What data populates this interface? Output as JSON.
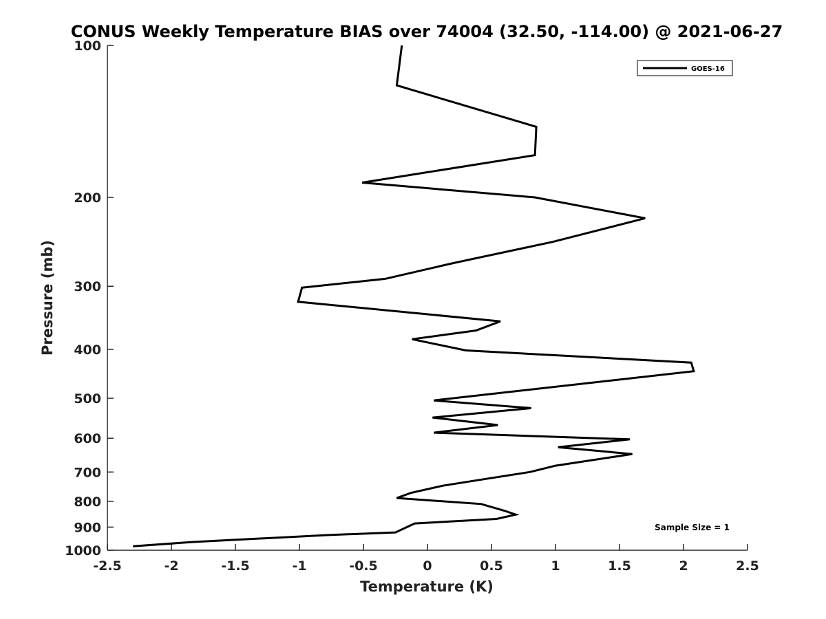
{
  "chart_data": {
    "type": "line",
    "title": "CONUS Weekly Temperature BIAS over 74004 (32.50, -114.00) @ 2021-06-27",
    "xlabel": "Temperature (K)",
    "ylabel": "Pressure (mb)",
    "xlim": [
      -2.5,
      2.5
    ],
    "ylim": [
      1000,
      100
    ],
    "y_scale": "log",
    "y_reversed": true,
    "grid": false,
    "x_ticks": [
      -2.5,
      -2,
      -1.5,
      -1,
      -0.5,
      0,
      0.5,
      1,
      1.5,
      2,
      2.5
    ],
    "x_tick_labels": [
      "-2.5",
      "-2",
      "-1.5",
      "-1",
      "-0.5",
      "0",
      "0.5",
      "1",
      "1.5",
      "2",
      "2.5"
    ],
    "y_ticks": [
      100,
      200,
      300,
      400,
      500,
      600,
      700,
      800,
      900,
      1000
    ],
    "y_tick_labels": [
      "100",
      "200",
      "300",
      "400",
      "500",
      "600",
      "700",
      "800",
      "900",
      "1000"
    ],
    "legend_position": "top-right",
    "series": [
      {
        "name": "GOES-16",
        "color": "#000000",
        "points": [
          [
            -0.2,
            100
          ],
          [
            -0.24,
            120
          ],
          [
            0.85,
            145
          ],
          [
            0.84,
            165
          ],
          [
            -0.51,
            187
          ],
          [
            0.84,
            200
          ],
          [
            1.7,
            220
          ],
          [
            0.98,
            245
          ],
          [
            0.2,
            270
          ],
          [
            -0.33,
            290
          ],
          [
            -0.98,
            302
          ],
          [
            -1.01,
            322
          ],
          [
            0.57,
            352
          ],
          [
            0.38,
            367
          ],
          [
            -0.12,
            382
          ],
          [
            0.3,
            402
          ],
          [
            2.06,
            425
          ],
          [
            2.08,
            442
          ],
          [
            0.05,
            505
          ],
          [
            0.81,
            523
          ],
          [
            0.04,
            546
          ],
          [
            0.55,
            565
          ],
          [
            0.05,
            585
          ],
          [
            1.58,
            603
          ],
          [
            1.02,
            625
          ],
          [
            1.6,
            645
          ],
          [
            1.0,
            680
          ],
          [
            0.8,
            700
          ],
          [
            0.49,
            720
          ],
          [
            0.12,
            745
          ],
          [
            -0.13,
            770
          ],
          [
            -0.24,
            788
          ],
          [
            0.42,
            810
          ],
          [
            0.6,
            835
          ],
          [
            0.69,
            850
          ],
          [
            0.54,
            867
          ],
          [
            -0.1,
            885
          ],
          [
            -0.25,
            922
          ],
          [
            -0.77,
            933
          ],
          [
            -1.83,
            963
          ],
          [
            -2.3,
            982
          ]
        ]
      }
    ],
    "annotation": "Sample Size = 1"
  }
}
